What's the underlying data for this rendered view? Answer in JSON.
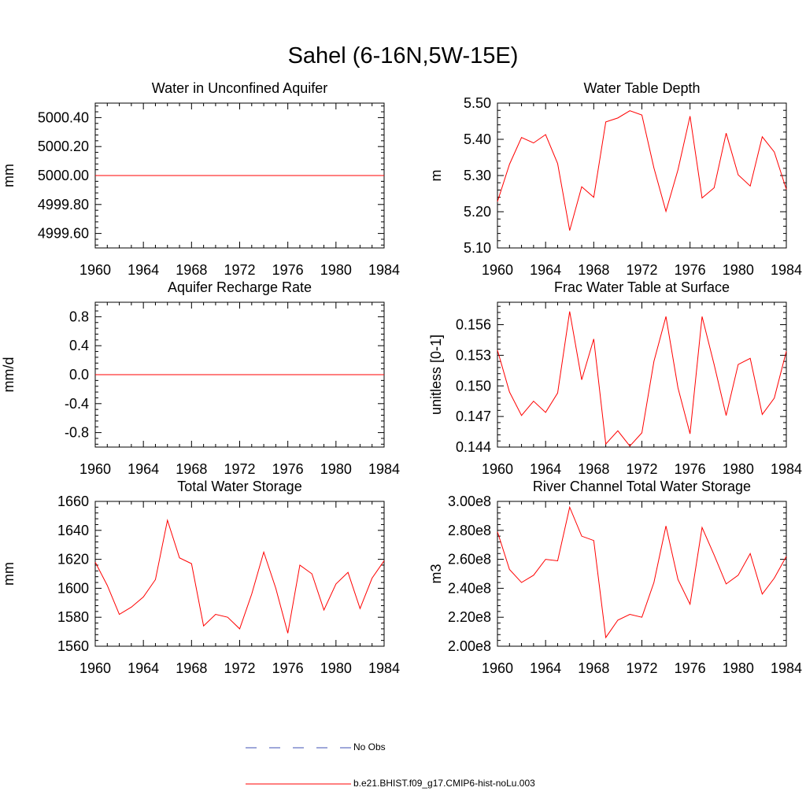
{
  "figure": {
    "title": "Sahel (6-16N,5W-15E)",
    "legend": [
      {
        "label": "No Obs",
        "color": "#3f51b5",
        "style": "dashed"
      },
      {
        "label": "b.e21.BHIST.f09_g17.CMIP6-hist-noLu.003",
        "color": "#ff0000",
        "style": "solid"
      }
    ]
  },
  "chart_data": [
    {
      "type": "line",
      "title": "Water in Unconfined Aquifer",
      "xlabel": "",
      "ylabel": "mm",
      "xlim": [
        1960,
        1984
      ],
      "ylim": [
        4999.5,
        5000.5
      ],
      "x_ticks": [
        "1960",
        "1964",
        "1968",
        "1972",
        "1976",
        "1980",
        "1984"
      ],
      "y_ticks": [
        "4999.60",
        "4999.80",
        "5000.00",
        "5000.20",
        "5000.40"
      ],
      "y_tick_values": [
        4999.6,
        4999.8,
        5000.0,
        5000.2,
        5000.4
      ],
      "series": [
        {
          "color": "#ff0000",
          "x": [
            1960,
            1961,
            1962,
            1963,
            1964,
            1965,
            1966,
            1967,
            1968,
            1969,
            1970,
            1971,
            1972,
            1973,
            1974,
            1975,
            1976,
            1977,
            1978,
            1979,
            1980,
            1981,
            1982,
            1983,
            1984
          ],
          "y": [
            5000,
            5000,
            5000,
            5000,
            5000,
            5000,
            5000,
            5000,
            5000,
            5000,
            5000,
            5000,
            5000,
            5000,
            5000,
            5000,
            5000,
            5000,
            5000,
            5000,
            5000,
            5000,
            5000,
            5000,
            5000
          ]
        }
      ]
    },
    {
      "type": "line",
      "title": "Water Table Depth",
      "xlabel": "",
      "ylabel": "m",
      "xlim": [
        1960,
        1984
      ],
      "ylim": [
        5.1,
        5.5
      ],
      "x_ticks": [
        "1960",
        "1964",
        "1968",
        "1972",
        "1976",
        "1980",
        "1984"
      ],
      "y_ticks": [
        "5.10",
        "5.20",
        "5.30",
        "5.40",
        "5.50"
      ],
      "y_tick_values": [
        5.1,
        5.2,
        5.3,
        5.4,
        5.5
      ],
      "series": [
        {
          "color": "#ff0000",
          "x": [
            1960,
            1961,
            1962,
            1963,
            1964,
            1965,
            1966,
            1967,
            1968,
            1969,
            1970,
            1971,
            1972,
            1973,
            1974,
            1975,
            1976,
            1977,
            1978,
            1979,
            1980,
            1981,
            1982,
            1983,
            1984
          ],
          "y": [
            5.228,
            5.331,
            5.405,
            5.39,
            5.413,
            5.333,
            5.148,
            5.269,
            5.24,
            5.448,
            5.459,
            5.479,
            5.467,
            5.321,
            5.201,
            5.316,
            5.464,
            5.238,
            5.266,
            5.417,
            5.302,
            5.271,
            5.407,
            5.365,
            5.262
          ]
        }
      ]
    },
    {
      "type": "line",
      "title": "Aquifer Recharge Rate",
      "xlabel": "",
      "ylabel": "mm/d",
      "xlim": [
        1960,
        1984
      ],
      "ylim": [
        -1.0,
        1.0
      ],
      "x_ticks": [
        "1960",
        "1964",
        "1968",
        "1972",
        "1976",
        "1980",
        "1984"
      ],
      "y_ticks": [
        "-0.8",
        "-0.4",
        "0.0",
        "0.4",
        "0.8"
      ],
      "y_tick_values": [
        -0.8,
        -0.4,
        0.0,
        0.4,
        0.8
      ],
      "series": [
        {
          "color": "#ff0000",
          "x": [
            1960,
            1961,
            1962,
            1963,
            1964,
            1965,
            1966,
            1967,
            1968,
            1969,
            1970,
            1971,
            1972,
            1973,
            1974,
            1975,
            1976,
            1977,
            1978,
            1979,
            1980,
            1981,
            1982,
            1983,
            1984
          ],
          "y": [
            0,
            0,
            0,
            0,
            0,
            0,
            0,
            0,
            0,
            0,
            0,
            0,
            0,
            0,
            0,
            0,
            0,
            0,
            0,
            0,
            0,
            0,
            0,
            0,
            0
          ]
        }
      ]
    },
    {
      "type": "line",
      "title": "Frac Water Table at Surface",
      "xlabel": "",
      "ylabel": "unitless [0-1]",
      "xlim": [
        1960,
        1984
      ],
      "ylim": [
        0.144,
        0.1582
      ],
      "x_ticks": [
        "1960",
        "1964",
        "1968",
        "1972",
        "1976",
        "1980",
        "1984"
      ],
      "y_ticks": [
        "0.144",
        "0.147",
        "0.150",
        "0.153",
        "0.156"
      ],
      "y_tick_values": [
        0.144,
        0.147,
        0.15,
        0.153,
        0.156
      ],
      "series": [
        {
          "color": "#ff0000",
          "x": [
            1960,
            1961,
            1962,
            1963,
            1964,
            1965,
            1966,
            1967,
            1968,
            1969,
            1970,
            1971,
            1972,
            1973,
            1974,
            1975,
            1976,
            1977,
            1978,
            1979,
            1980,
            1981,
            1982,
            1983,
            1984
          ],
          "y": [
            0.1535,
            0.1494,
            0.1471,
            0.1485,
            0.1474,
            0.1493,
            0.1573,
            0.1506,
            0.1546,
            0.1443,
            0.1456,
            0.1441,
            0.1454,
            0.1524,
            0.1568,
            0.1498,
            0.1453,
            0.1568,
            0.1521,
            0.1471,
            0.1521,
            0.1527,
            0.1472,
            0.1488,
            0.1534
          ]
        }
      ]
    },
    {
      "type": "line",
      "title": "Total Water Storage",
      "xlabel": "",
      "ylabel": "mm",
      "xlim": [
        1960,
        1984
      ],
      "ylim": [
        1560,
        1660
      ],
      "x_ticks": [
        "1960",
        "1964",
        "1968",
        "1972",
        "1976",
        "1980",
        "1984"
      ],
      "y_ticks": [
        "1560",
        "1580",
        "1600",
        "1620",
        "1640",
        "1660"
      ],
      "y_tick_values": [
        1560,
        1580,
        1600,
        1620,
        1640,
        1660
      ],
      "series": [
        {
          "color": "#ff0000",
          "x": [
            1960,
            1961,
            1962,
            1963,
            1964,
            1965,
            1966,
            1967,
            1968,
            1969,
            1970,
            1971,
            1972,
            1973,
            1974,
            1975,
            1976,
            1977,
            1978,
            1979,
            1980,
            1981,
            1982,
            1983,
            1984
          ],
          "y": [
            1618,
            1602,
            1582,
            1587,
            1594,
            1606,
            1647,
            1621,
            1617,
            1574,
            1582,
            1580,
            1572,
            1596,
            1625,
            1600,
            1569,
            1616,
            1610,
            1585,
            1603,
            1611,
            1586,
            1607,
            1619
          ]
        }
      ]
    },
    {
      "type": "line",
      "title": "River Channel Total Water Storage",
      "xlabel": "",
      "ylabel": "m3",
      "xlim": [
        1960,
        1984
      ],
      "ylim": [
        200000000.0,
        300000000.0
      ],
      "x_ticks": [
        "1960",
        "1964",
        "1968",
        "1972",
        "1976",
        "1980",
        "1984"
      ],
      "y_ticks": [
        "2.00e8",
        "2.20e8",
        "2.40e8",
        "2.60e8",
        "2.80e8",
        "3.00e8"
      ],
      "y_tick_values": [
        200000000,
        220000000,
        240000000,
        260000000,
        280000000,
        300000000
      ],
      "series": [
        {
          "color": "#ff0000",
          "x": [
            1960,
            1961,
            1962,
            1963,
            1964,
            1965,
            1966,
            1967,
            1968,
            1969,
            1970,
            1971,
            1972,
            1973,
            1974,
            1975,
            1976,
            1977,
            1978,
            1979,
            1980,
            1981,
            1982,
            1983,
            1984
          ],
          "y": [
            279000000,
            253000000,
            244000000,
            249000000,
            260000000,
            259000000,
            296000000,
            276000000,
            273000000,
            206000000,
            218000000,
            222000000,
            220000000,
            244000000,
            283000000,
            246000000,
            229000000,
            282000000,
            263000000,
            243000000,
            249000000,
            264000000,
            236000000,
            247000000,
            262000000
          ]
        }
      ]
    }
  ]
}
